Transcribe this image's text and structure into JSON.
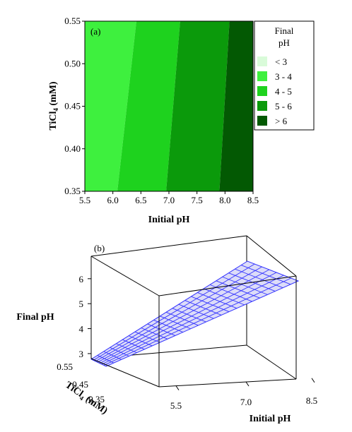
{
  "chart_data": [
    {
      "type": "heatmap",
      "subtype": "contour",
      "panel_label": "(a)",
      "xlabel": "Initial pH",
      "ylabel_main": "TiCl",
      "ylabel_sub": "4",
      "ylabel_unit": " (mM)",
      "xlim": [
        5.5,
        8.5
      ],
      "ylim": [
        0.35,
        0.55
      ],
      "x_ticks": [
        "5.5",
        "6.0",
        "6.5",
        "7.0",
        "7.5",
        "8.0",
        "8.5"
      ],
      "y_ticks": [
        "0.35",
        "0.40",
        "0.45",
        "0.50",
        "0.55"
      ],
      "legend_position": "right",
      "legend": {
        "title_line1": "Final",
        "title_line2": "pH",
        "entries": [
          {
            "label": "<  3",
            "color": "#d9fbd9"
          },
          {
            "label": "3  -  4",
            "color": "#3ef03e"
          },
          {
            "label": "4  -  5",
            "color": "#1ed21e"
          },
          {
            "label": "5  -  6",
            "color": "#0b9a0b"
          },
          {
            "label": ">  6",
            "color": "#035903"
          }
        ]
      },
      "regions": [
        {
          "range": "3 - 4",
          "color": "#3ef03e",
          "x_bottom": [
            5.5,
            6.08
          ],
          "x_top": [
            5.5,
            6.42
          ]
        },
        {
          "range": "4 - 5",
          "color": "#1ed21e",
          "x_bottom": [
            6.08,
            6.95
          ],
          "x_top": [
            6.42,
            7.2
          ]
        },
        {
          "range": "5 - 6",
          "color": "#0b9a0b",
          "x_bottom": [
            6.95,
            7.9
          ],
          "x_top": [
            7.2,
            8.08
          ]
        },
        {
          "range": "> 6",
          "color": "#035903",
          "x_bottom": [
            7.9,
            8.5
          ],
          "x_top": [
            8.08,
            8.5
          ]
        }
      ]
    },
    {
      "type": "surface",
      "panel_label": "(b)",
      "zlabel": "Final pH",
      "xlabel": "Initial pH",
      "ylabel_main": "TiCl",
      "ylabel_sub": "4",
      "ylabel_unit": " (mM)",
      "x_ticks": [
        "5.5",
        "7.0",
        "8.5"
      ],
      "y_ticks": [
        "0.55",
        "0.45",
        "0.35"
      ],
      "z_ticks": [
        "3",
        "4",
        "5",
        "6"
      ],
      "surface_color": "#3333ff",
      "surface_fill": "#dcdcf8"
    }
  ]
}
